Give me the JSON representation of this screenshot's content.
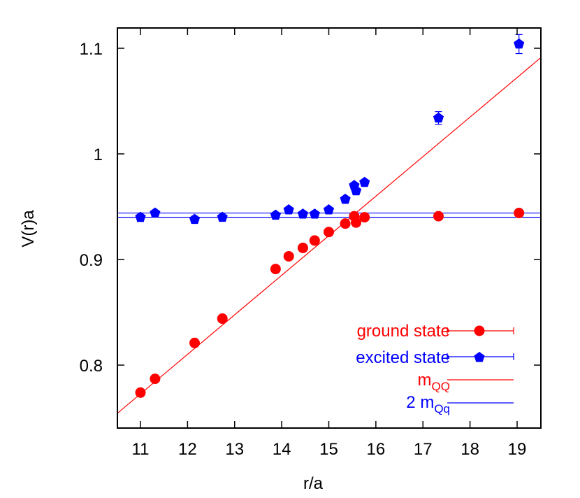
{
  "chart_data": {
    "type": "scatter",
    "title": "",
    "xlabel": "r/a",
    "ylabel": "V(r)a",
    "xlim": [
      10.5,
      19.5
    ],
    "ylim": [
      0.755,
      1.12
    ],
    "grid": false,
    "legend_position": "lower right",
    "x_ticks": [
      11,
      12,
      13,
      14,
      15,
      16,
      17,
      18,
      19
    ],
    "x_tick_labels": [
      "11",
      "12",
      "13",
      "14",
      "15",
      "16",
      "17",
      "18",
      "19"
    ],
    "y_ticks": [
      0.8,
      0.9,
      1.0,
      1.1
    ],
    "y_tick_labels": [
      "0.8",
      "0.9",
      "1",
      "1.1"
    ],
    "series": [
      {
        "name": "ground state",
        "color": "#ff0000",
        "marker": "circle",
        "error_bars": true,
        "x": [
          11.0,
          11.31,
          12.15,
          12.74,
          13.87,
          14.15,
          14.45,
          14.7,
          15.0,
          15.35,
          15.54,
          15.58,
          15.76,
          17.33,
          19.04
        ],
        "y": [
          0.774,
          0.787,
          0.821,
          0.844,
          0.891,
          0.903,
          0.911,
          0.918,
          0.926,
          0.934,
          0.941,
          0.935,
          0.94,
          0.941,
          0.944
        ]
      },
      {
        "name": "excited state",
        "color": "#0000ff",
        "marker": "pentagon",
        "error_bars": true,
        "x": [
          11.0,
          11.31,
          12.15,
          12.74,
          13.87,
          14.15,
          14.45,
          14.7,
          15.0,
          15.35,
          15.54,
          15.58,
          15.76,
          17.33,
          19.04
        ],
        "y": [
          0.94,
          0.944,
          0.938,
          0.94,
          0.942,
          0.947,
          0.943,
          0.943,
          0.947,
          0.957,
          0.97,
          0.965,
          0.973,
          1.034,
          1.104
        ],
        "y_err": [
          0.004,
          0.002,
          0.003,
          0.002,
          0.002,
          0.002,
          0.002,
          0.002,
          0.002,
          0.002,
          0.002,
          0.002,
          0.002,
          0.006,
          0.009
        ]
      },
      {
        "name": "m_QQ",
        "color": "#ff0000",
        "type": "line",
        "x": [
          10.5,
          19.5
        ],
        "y": [
          0.754,
          1.091
        ]
      },
      {
        "name": "2 m_Qq",
        "color": "#0000ff",
        "type": "band_lines",
        "y_values": [
          0.94,
          0.944
        ]
      }
    ]
  },
  "axes": {
    "xlabel": "r/a",
    "ylabel": "V(r)a"
  },
  "legend": {
    "items": [
      {
        "label": "ground state",
        "color": "#ff0000",
        "marker": "circle"
      },
      {
        "label": "excited state",
        "color": "#0000ff",
        "marker": "pentagon"
      },
      {
        "label_main": "m",
        "label_sub": "QQ",
        "color": "#ff0000",
        "marker": "line"
      },
      {
        "label_main": "2 m",
        "label_sub": "Qq",
        "color": "#0000ff",
        "marker": "line"
      }
    ]
  }
}
